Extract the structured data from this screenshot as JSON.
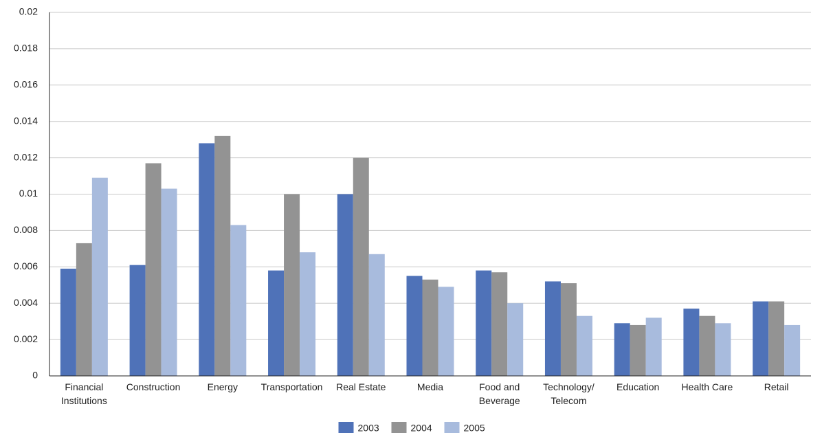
{
  "chart_data": {
    "type": "bar",
    "categories": [
      "Financial Institutions",
      "Construction",
      "Energy",
      "Transportation",
      "Real Estate",
      "Media",
      "Food and Beverage",
      "Technology/ Telecom",
      "Education",
      "Health Care",
      "Retail"
    ],
    "series": [
      {
        "name": "2003",
        "color": "#4f72b8",
        "values": [
          0.0059,
          0.0061,
          0.0128,
          0.0058,
          0.01,
          0.0055,
          0.0058,
          0.0052,
          0.0029,
          0.0037,
          0.0041
        ]
      },
      {
        "name": "2004",
        "color": "#939393",
        "values": [
          0.0073,
          0.0117,
          0.0132,
          0.01,
          0.012,
          0.0053,
          0.0057,
          0.0051,
          0.0028,
          0.0033,
          0.0041
        ]
      },
      {
        "name": "2005",
        "color": "#a8bbdd",
        "values": [
          0.0109,
          0.0103,
          0.0083,
          0.0068,
          0.0067,
          0.0049,
          0.004,
          0.0033,
          0.0032,
          0.0029,
          0.0028
        ]
      }
    ],
    "ylim": [
      0,
      0.02
    ],
    "yticks": [
      0,
      0.002,
      0.004,
      0.006,
      0.008,
      0.01,
      0.012,
      0.014,
      0.016,
      0.018,
      0.02
    ],
    "grid": true,
    "legend": "bottom"
  }
}
